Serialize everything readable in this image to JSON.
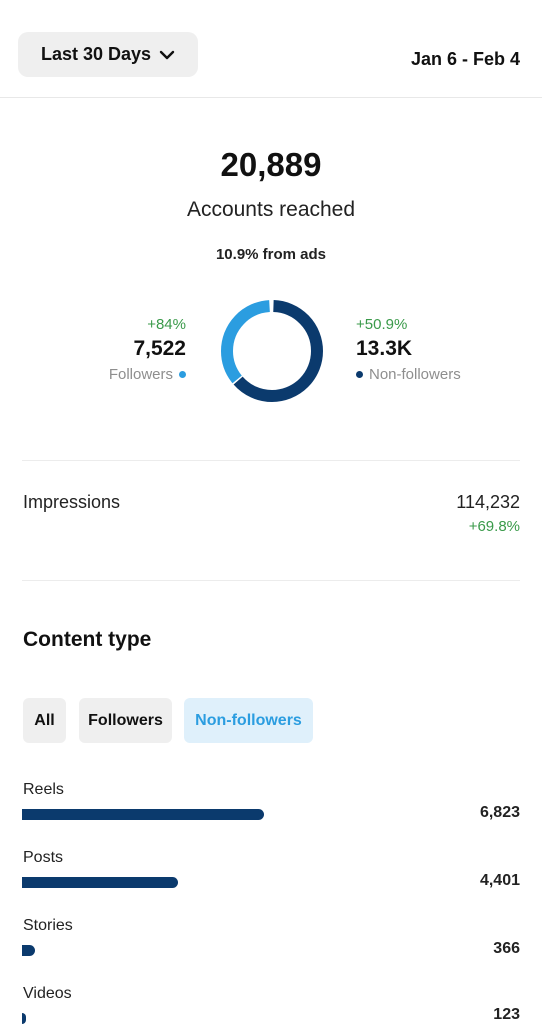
{
  "header": {
    "range_label": "Last 30 Days",
    "date_range": "Jan 6 - Feb 4"
  },
  "reach": {
    "value": "20,889",
    "label": "Accounts reached",
    "ads_note": "10.9% from ads"
  },
  "followers": {
    "delta": "+84%",
    "count": "7,522",
    "label": "Followers",
    "color": "#2b9de0"
  },
  "non_followers": {
    "delta": "+50.9%",
    "count": "13.3K",
    "label": "Non-followers",
    "color": "#0b3a6d"
  },
  "impressions": {
    "label": "Impressions",
    "value": "114,232",
    "delta": "+69.8%"
  },
  "content_type": {
    "title": "Content type",
    "filters": [
      "All",
      "Followers",
      "Non-followers"
    ],
    "selected_filter": "Non-followers",
    "rows": [
      {
        "label": "Reels",
        "value": "6,823",
        "amount": 6823
      },
      {
        "label": "Posts",
        "value": "4,401",
        "amount": 4401
      },
      {
        "label": "Stories",
        "value": "366",
        "amount": 366
      },
      {
        "label": "Videos",
        "value": "123",
        "amount": 123
      }
    ],
    "max_amount": 10150
  },
  "donut": {
    "followers_fraction": 0.36,
    "non_followers_fraction": 0.64
  }
}
